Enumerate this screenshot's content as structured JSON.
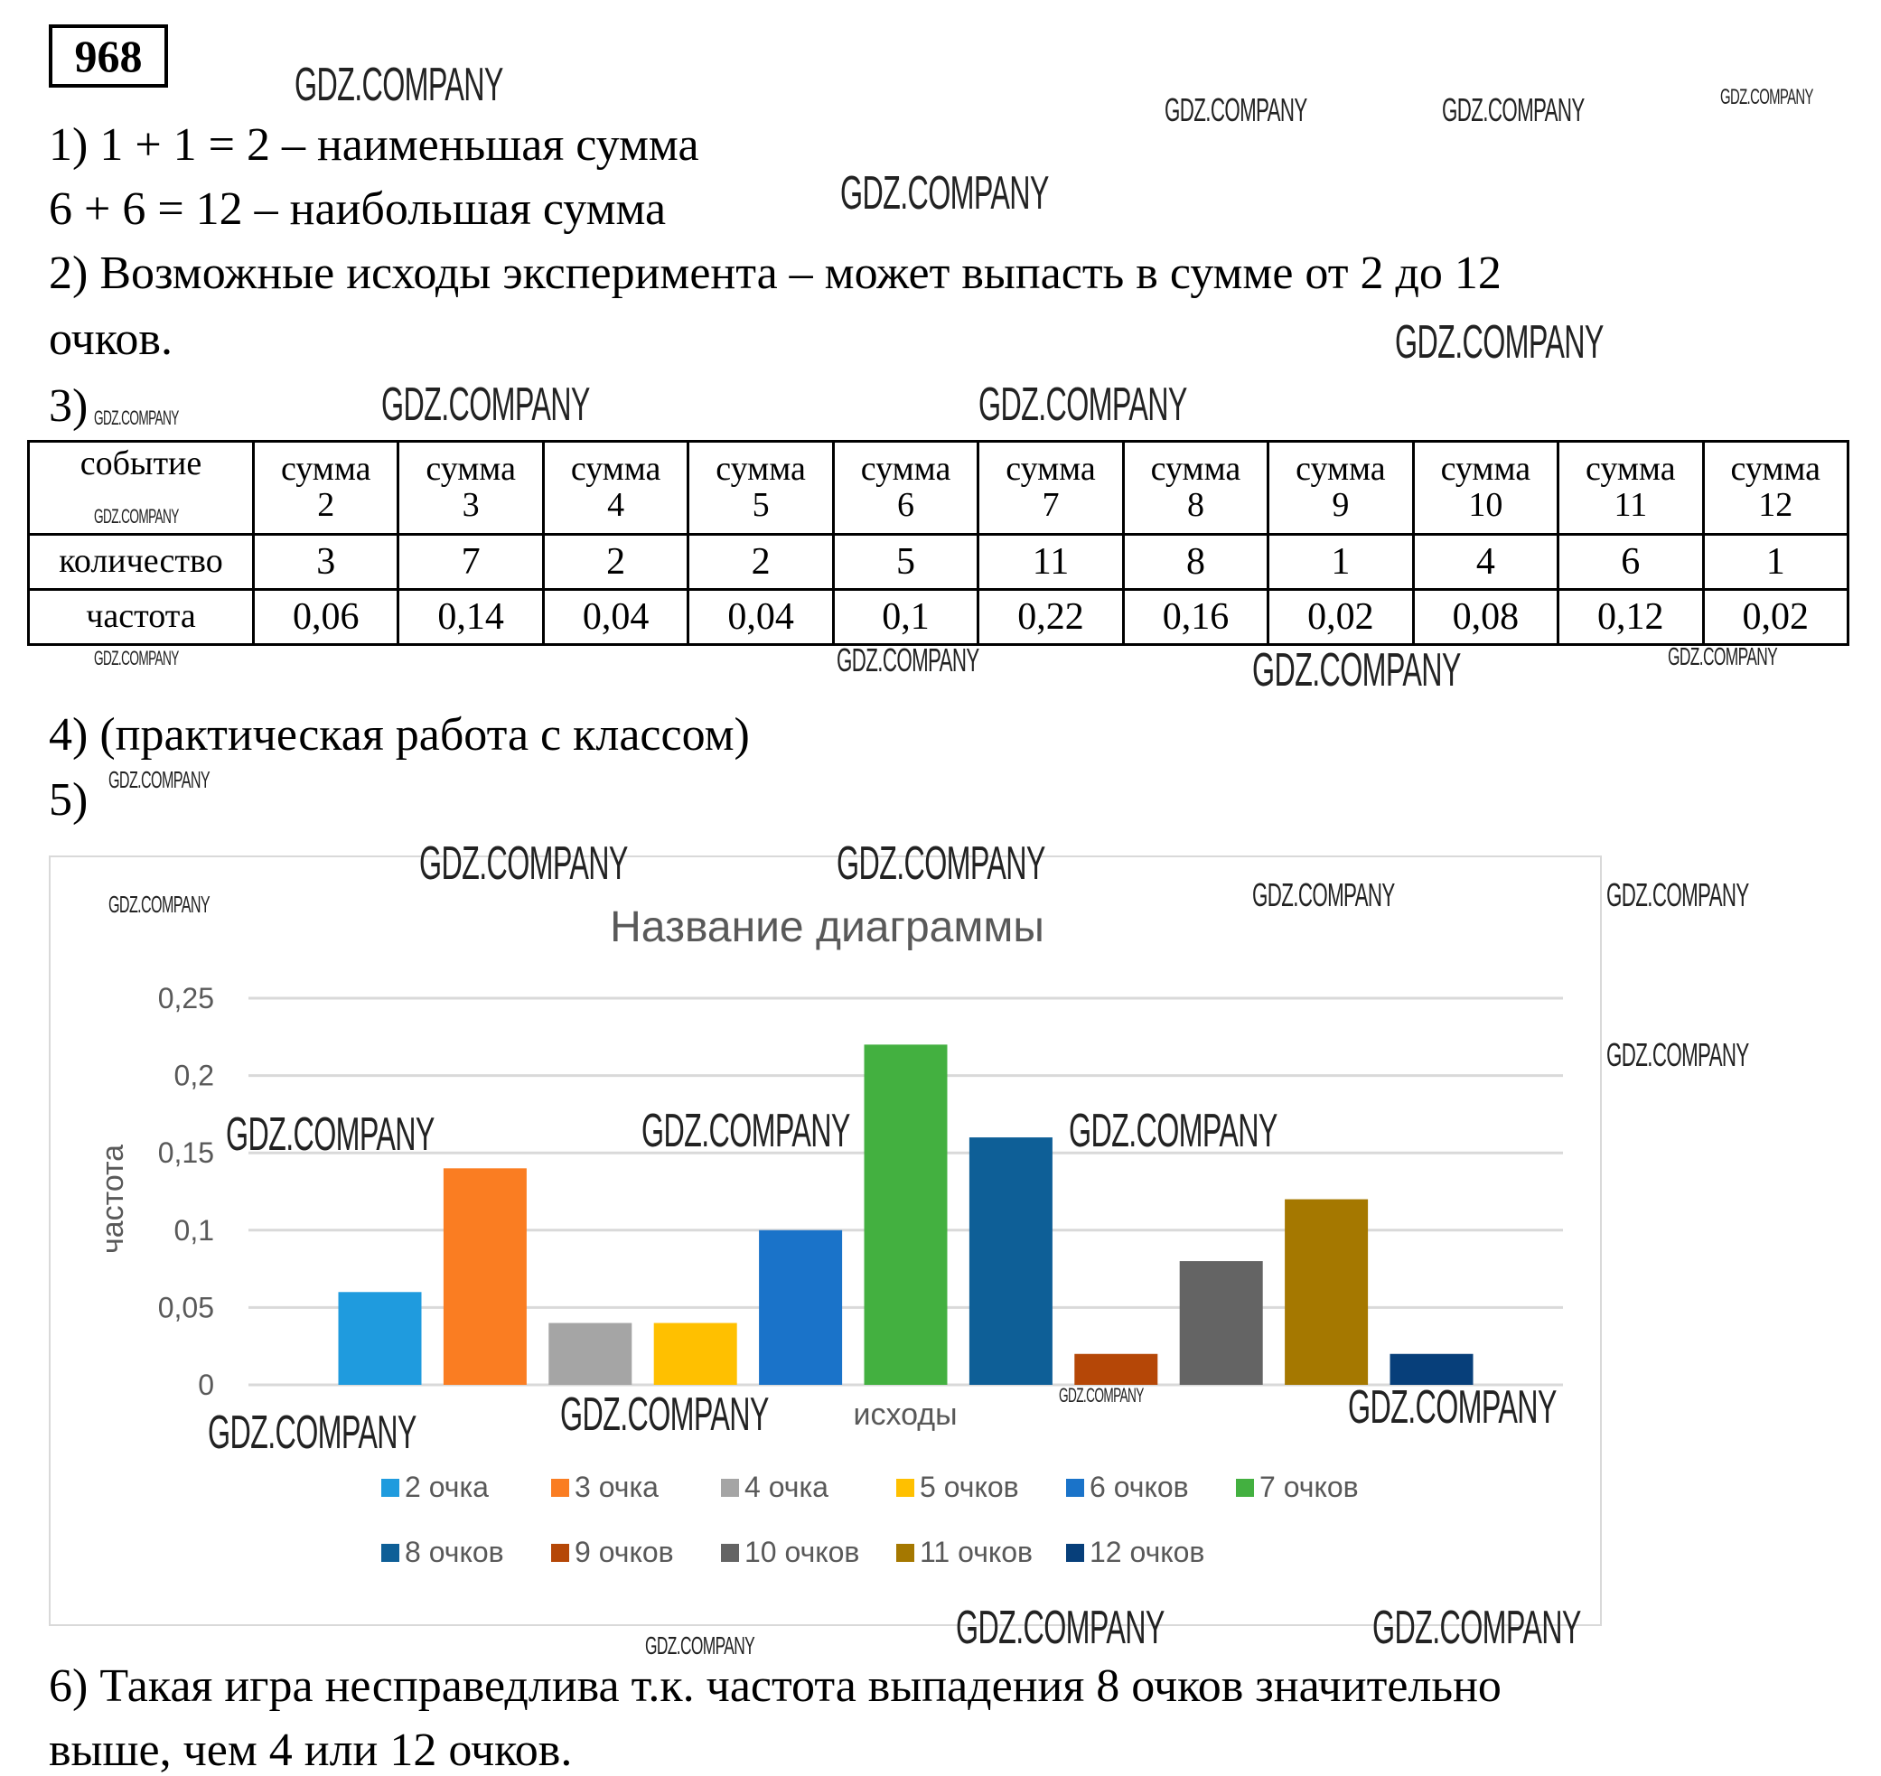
{
  "problem_number": "968",
  "lines": {
    "l1": "1) 1 + 1 = 2 – наименьшая сумма",
    "l2": "6 + 6 = 12 – наибольшая сумма",
    "l3": "2) Возможные исходы эксперимента – может выпасть в сумме от 2 до 12",
    "l4": "очков.",
    "l5": "3)",
    "l6": "4) (практическая работа с классом)",
    "l7": "5)",
    "l8": "6) Такая игра несправедлива т.к. частота выпадения 8 очков значительно",
    "l9": "выше, чем 4 или 12 очков."
  },
  "table": {
    "row_labels": [
      "событие",
      "количество",
      "частота"
    ],
    "events": [
      "сумма 2",
      "сумма 3",
      "сумма 4",
      "сумма 5",
      "сумма 6",
      "сумма 7",
      "сумма 8",
      "сумма 9",
      "сумма 10",
      "сумма 11",
      "сумма 12"
    ],
    "counts": [
      "3",
      "7",
      "2",
      "2",
      "5",
      "11",
      "8",
      "1",
      "4",
      "6",
      "1"
    ],
    "frequencies": [
      "0,06",
      "0,14",
      "0,04",
      "0,04",
      "0,1",
      "0,22",
      "0,16",
      "0,02",
      "0,08",
      "0,12",
      "0,02"
    ]
  },
  "chart_data": {
    "type": "bar",
    "title": "Название диаграммы",
    "xlabel": "исходы",
    "ylabel": "частота",
    "ylim": [
      0,
      0.25
    ],
    "yticks": [
      "0",
      "0,05",
      "0,1",
      "0,15",
      "0,2",
      "0,25"
    ],
    "grid": true,
    "legend_position": "bottom",
    "series": [
      {
        "name": "2 очка",
        "value": 0.06,
        "color": "#1f9bde"
      },
      {
        "name": "3 очка",
        "value": 0.14,
        "color": "#fa7d22"
      },
      {
        "name": "4 очка",
        "value": 0.04,
        "color": "#a5a5a5"
      },
      {
        "name": "5 очков",
        "value": 0.04,
        "color": "#ffc000"
      },
      {
        "name": "6 очков",
        "value": 0.1,
        "color": "#1a73c9"
      },
      {
        "name": "7 очков",
        "value": 0.22,
        "color": "#43b040"
      },
      {
        "name": "8 очков",
        "value": 0.16,
        "color": "#0e5f97"
      },
      {
        "name": "9 очков",
        "value": 0.02,
        "color": "#b54707"
      },
      {
        "name": "10 очков",
        "value": 0.08,
        "color": "#646464"
      },
      {
        "name": "11 очков",
        "value": 0.12,
        "color": "#a57800"
      },
      {
        "name": "12 очков",
        "value": 0.02,
        "color": "#073f7a"
      }
    ]
  },
  "watermark": "GDZ.COMPANY"
}
